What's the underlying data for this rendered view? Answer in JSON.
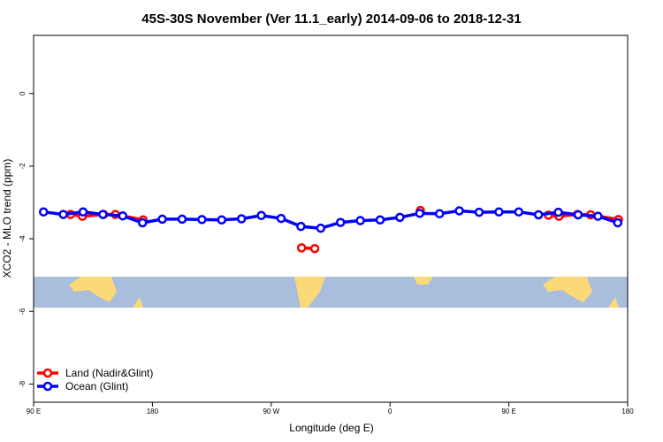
{
  "chart_data": {
    "type": "line",
    "title": "45S-30S November (Ver 11.1_early)   2014-09-06 to 2018-12-31",
    "x_label": "Longitude (deg E)",
    "y_label": "XCO2 - MLO trend (ppm)",
    "xlim": [
      90,
      540
    ],
    "ylim": [
      -8.5,
      1.6
    ],
    "xticks": [
      {
        "value": 90,
        "label": "90 E"
      },
      {
        "value": 180,
        "label": "180"
      },
      {
        "value": 270,
        "label": "90 W"
      },
      {
        "value": 360,
        "label": "0"
      },
      {
        "value": 450,
        "label": "90 E"
      },
      {
        "value": 540,
        "label": "180"
      }
    ],
    "yticks": [
      0,
      -2,
      -4,
      -6,
      -8
    ],
    "legend": "bottom-left",
    "series": [
      {
        "name": "Land (Nadir&Glint)",
        "color": "#ff0000",
        "x": [
          118,
          127,
          143,
          152,
          173,
          null,
          293,
          303,
          null,
          383,
          null,
          480,
          488,
          502,
          512,
          533
        ],
        "values": [
          -3.33,
          -3.38,
          -3.33,
          -3.33,
          -3.48,
          null,
          -4.25,
          -4.27,
          null,
          -3.22,
          null,
          -3.35,
          -3.38,
          -3.33,
          -3.34,
          -3.47
        ]
      },
      {
        "name": "Ocean (Glint)",
        "color": "#0000ff",
        "x": [
          97.5,
          112.5,
          127.5,
          142.5,
          157.5,
          172.5,
          187.5,
          202.5,
          217.5,
          232.5,
          247.5,
          262.5,
          277.5,
          292.5,
          307.5,
          322.5,
          337.5,
          352.5,
          367.5,
          382.5,
          397.5,
          412.5,
          427.5,
          442.5,
          457.5,
          472.5,
          487.5,
          502.5,
          517.5,
          532.5
        ],
        "values": [
          -3.26,
          -3.33,
          -3.26,
          -3.33,
          -3.37,
          -3.56,
          -3.46,
          -3.46,
          -3.47,
          -3.48,
          -3.45,
          -3.36,
          -3.44,
          -3.66,
          -3.71,
          -3.55,
          -3.5,
          -3.48,
          -3.41,
          -3.3,
          -3.31,
          -3.23,
          -3.27,
          -3.26,
          -3.26,
          -3.34,
          -3.27,
          -3.34,
          -3.38,
          -3.56
        ]
      }
    ]
  }
}
